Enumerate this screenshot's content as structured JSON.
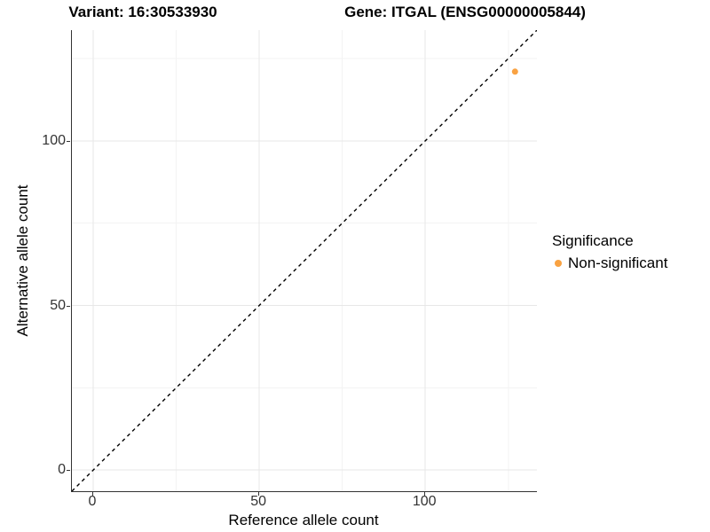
{
  "titles": {
    "variant": "Variant: 16:30533930",
    "gene": "Gene: ITGAL (ENSG00000005844)"
  },
  "chart_data": {
    "type": "scatter",
    "title": "Variant: 16:30533930 / Gene: ITGAL (ENSG00000005844)",
    "xlabel": "Reference allele count",
    "ylabel": "Alternative allele count",
    "xlim": [
      -6.4,
      133.6
    ],
    "ylim": [
      -6.4,
      133.6
    ],
    "x_ticks_major": [
      0,
      50,
      100
    ],
    "x_ticks_minor": [
      25,
      75,
      125
    ],
    "y_ticks_major": [
      0,
      50,
      100
    ],
    "y_ticks_minor": [
      25,
      75,
      125
    ],
    "grid": "major+minor on white panel",
    "points": [
      {
        "x": 127,
        "y": 121,
        "series": "Non-significant",
        "color": "#F9A242",
        "radius": 3.5
      }
    ],
    "abline": {
      "slope": 1,
      "intercept": 0,
      "style": "dashed",
      "color": "#000000"
    },
    "legend": {
      "title": "Significance",
      "position": "right",
      "items": [
        {
          "label": "Non-significant",
          "color": "#F9A242"
        }
      ]
    },
    "colors": {
      "grid_major": "#E7E7E7",
      "grid_minor": "#F3F3F3",
      "axis_line": "#333333",
      "tick_text": "#333333",
      "point": "#F9A242"
    }
  }
}
